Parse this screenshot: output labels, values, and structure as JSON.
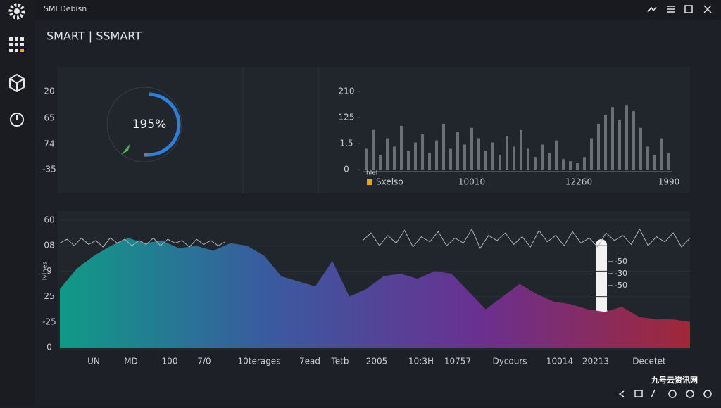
{
  "window": {
    "title": "SMI Debisn"
  },
  "header": {
    "title": "SMART | SSMART"
  },
  "gauge": {
    "label": "195%",
    "ylabels": [
      "20",
      "65",
      "74",
      "-35"
    ]
  },
  "bar_chart": {
    "type": "bar",
    "ylim": [
      0,
      75
    ],
    "yticks": [
      0,
      {
        "value": 25,
        "label": "1.5"
      },
      {
        "value": 50,
        "label": "125"
      },
      {
        "value": 75,
        "label": "210"
      }
    ],
    "color": "#6b6f78",
    "values": [
      20,
      38,
      14,
      30,
      22,
      42,
      18,
      26,
      34,
      16,
      28,
      44,
      20,
      36,
      24,
      40,
      30,
      18,
      26,
      14,
      32,
      22,
      38,
      20,
      12,
      24,
      16,
      28,
      10,
      8,
      6,
      12,
      30,
      44,
      52,
      60,
      48,
      62,
      56,
      40,
      22,
      14,
      30,
      16
    ],
    "note": "hlel",
    "legend": {
      "name": "Sxelso",
      "color": "#e8a317"
    },
    "xlabels": [
      "10010",
      "12260",
      "1990"
    ]
  },
  "area_chart": {
    "type": "area",
    "ylabel": "Ivlnes",
    "ylim": [
      0,
      100
    ],
    "yticks": [
      0,
      {
        "value": 20,
        "label": "-25"
      },
      {
        "value": 40,
        "label": "25"
      },
      {
        "value": 60,
        "label": "9"
      },
      {
        "value": 80,
        "label": "08"
      },
      {
        "value": 100,
        "label": "60"
      }
    ],
    "values": [
      46,
      62,
      72,
      80,
      86,
      82,
      84,
      78,
      80,
      76,
      82,
      80,
      72,
      56,
      52,
      48,
      68,
      40,
      46,
      56,
      58,
      54,
      60,
      58,
      44,
      30,
      40,
      50,
      42,
      36,
      34,
      30,
      28,
      32,
      24,
      22,
      22,
      20
    ],
    "colors": [
      "#109a86",
      "#3a5aa0",
      "#6a3090",
      "#a02838"
    ],
    "noise_left": [
      82,
      85,
      80,
      86,
      81,
      84,
      79,
      86,
      82,
      85,
      80,
      84,
      81,
      86,
      80,
      85,
      82,
      84,
      79,
      85,
      81,
      84,
      80,
      83
    ],
    "noise_right": [
      84,
      90,
      80,
      88,
      82,
      92,
      79,
      87,
      83,
      91,
      80,
      86,
      82,
      93,
      78,
      88,
      84,
      90,
      81,
      87,
      79,
      92,
      83,
      88,
      80,
      91,
      82,
      86,
      79,
      90,
      84,
      88,
      81,
      93,
      80,
      87,
      83,
      90,
      79,
      86
    ],
    "noise_color": "#b0b3b8",
    "xlabels": [
      "UN",
      "MD",
      "100",
      "7/0",
      "10terages",
      "7ead",
      "Tetb",
      "2005",
      "10:3H",
      "10757",
      "Dycours",
      "10014",
      "20213",
      "Decetet"
    ]
  },
  "thermometer": {
    "labels": [
      "-50",
      "-30",
      "-50"
    ]
  },
  "watermark": "九号云资讯网"
}
